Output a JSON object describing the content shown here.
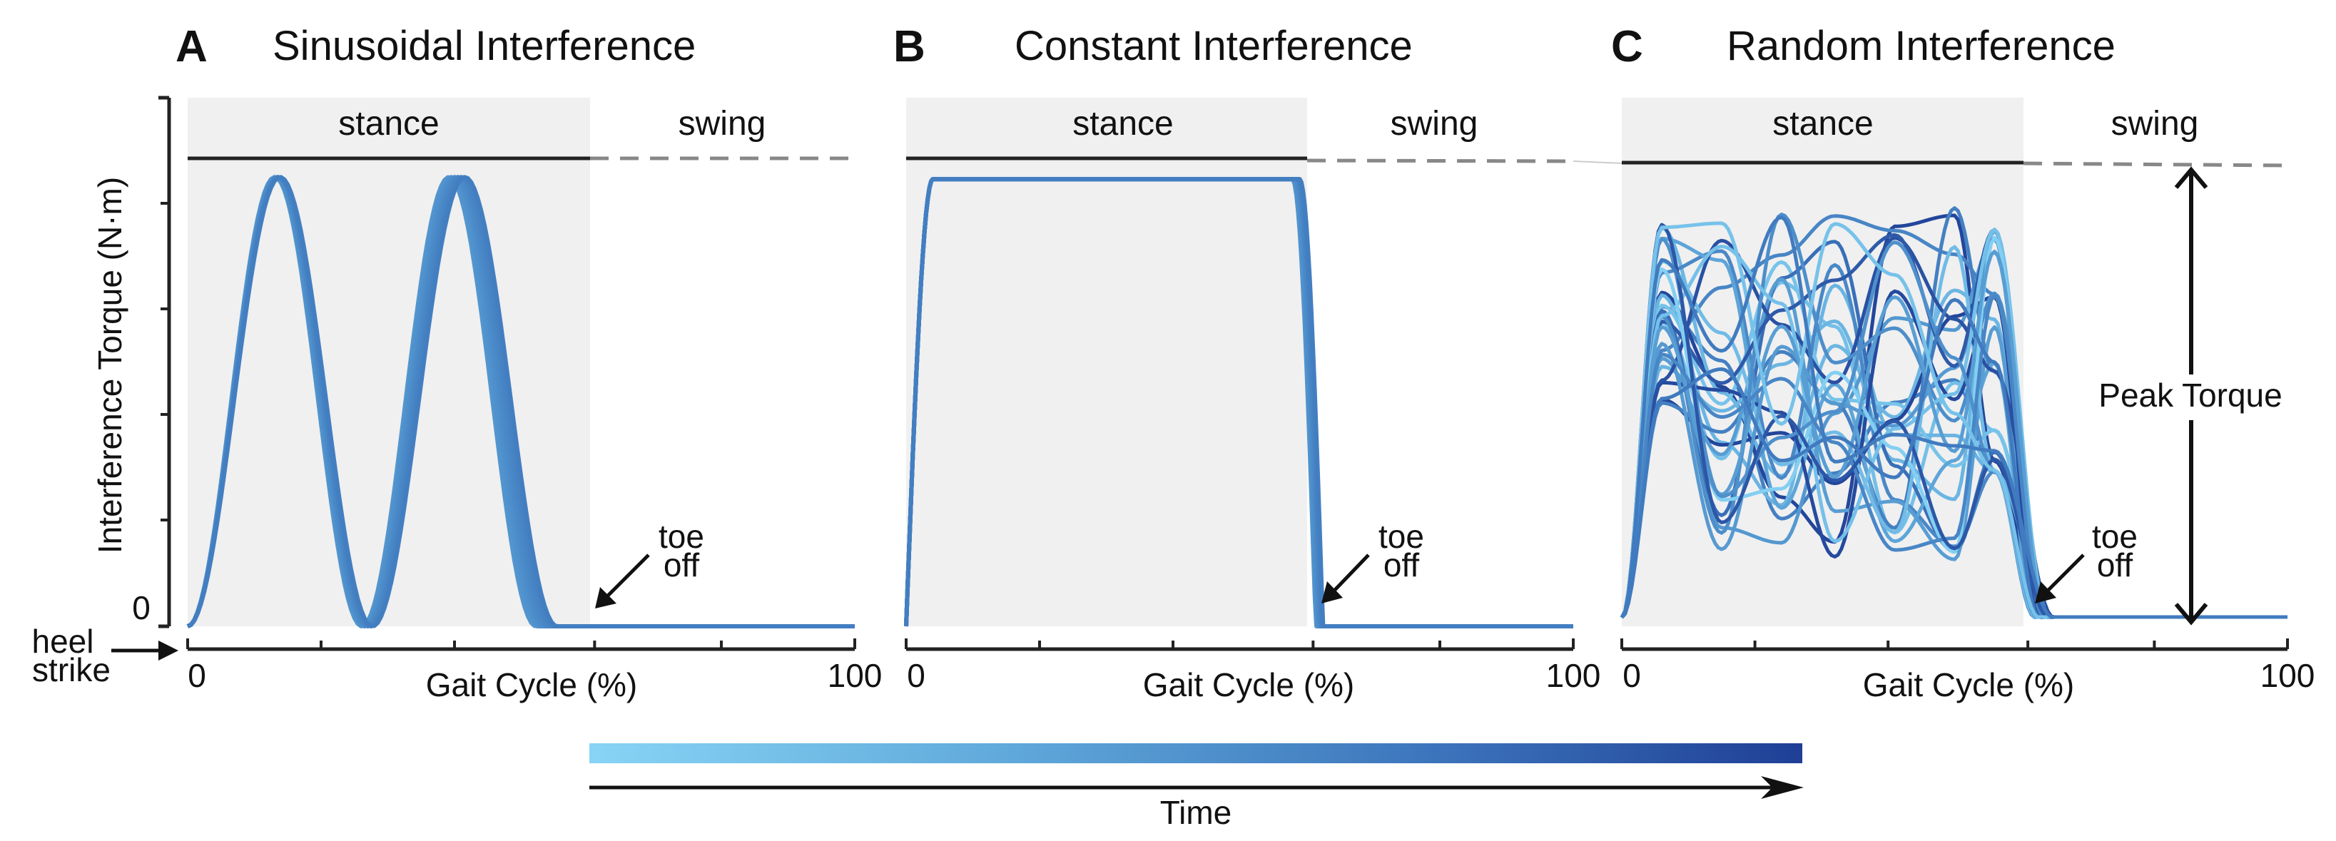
{
  "figure": {
    "ylabel": "Interference Torque (N·m)",
    "y_zero_label": "0",
    "heel_strike_label": [
      "heel",
      "strike"
    ],
    "time_label": "Time",
    "colors": {
      "stance_shade": "#f0f0f0",
      "axis": "#222222",
      "swing_dash": "#888888",
      "time_gradient": [
        "#87d4f5",
        "#5fa8da",
        "#3c74bb",
        "#1f3f96"
      ]
    }
  },
  "chart_data": [
    {
      "type": "line",
      "letter": "A",
      "title": "Sinusoidal Interference",
      "xlabel": "Gait Cycle (%)",
      "xlim": [
        0,
        100
      ],
      "xtick_labels": [
        "0",
        "100"
      ],
      "ylim": [
        0,
        1
      ],
      "phases": [
        {
          "name": "stance",
          "range": [
            0,
            61
          ]
        },
        {
          "name": "swing",
          "range": [
            61,
            100
          ]
        }
      ],
      "profile": "sinusoid",
      "peaks_at": [
        13,
        40
      ],
      "stance_end": 54,
      "n_strides": 10,
      "peak_torque": 0.96,
      "annotation": {
        "label": [
          "toe",
          "off"
        ],
        "x": 61
      }
    },
    {
      "type": "line",
      "letter": "B",
      "title": "Constant Interference",
      "xlabel": "Gait Cycle (%)",
      "xlim": [
        0,
        100
      ],
      "xtick_labels": [
        "0",
        "100"
      ],
      "ylim": [
        0,
        1
      ],
      "phases": [
        {
          "name": "stance",
          "range": [
            0,
            61
          ]
        },
        {
          "name": "swing",
          "range": [
            61,
            100
          ]
        }
      ],
      "profile": "constant",
      "rise": [
        0,
        4
      ],
      "fall_start": 58.5,
      "n_strides": 10,
      "peak_torque": 0.96,
      "annotation": {
        "label": [
          "toe",
          "off"
        ],
        "x": 61
      }
    },
    {
      "type": "line",
      "letter": "C",
      "title": "Random Interference",
      "xlabel": "Gait Cycle (%)",
      "xlim": [
        0,
        100
      ],
      "xtick_labels": [
        "0",
        "100"
      ],
      "ylim": [
        0,
        1
      ],
      "phases": [
        {
          "name": "stance",
          "range": [
            0,
            61
          ]
        },
        {
          "name": "swing",
          "range": [
            61,
            100
          ]
        }
      ],
      "profile": "random",
      "n_strides": 30,
      "peak_torque": 0.96,
      "peak_label": "Peak Torque",
      "annotation": {
        "label": [
          "toe",
          "off"
        ],
        "x": 61
      }
    }
  ]
}
